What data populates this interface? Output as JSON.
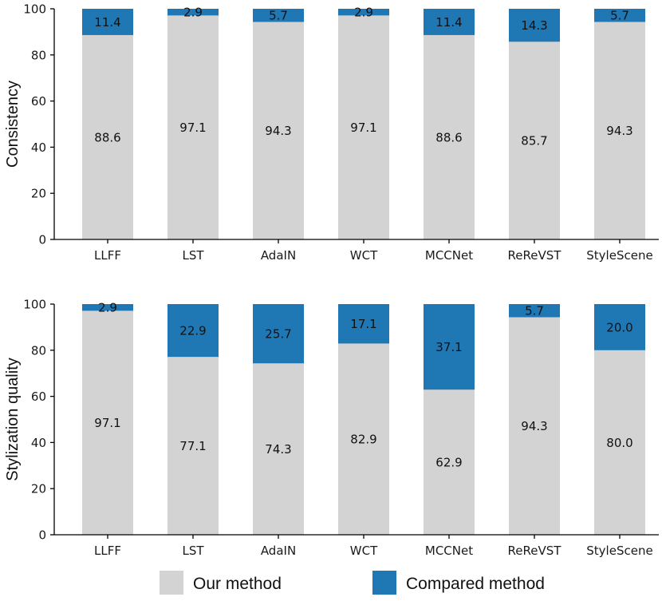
{
  "colors": {
    "ours": "#d3d3d3",
    "compared": "#1f77b4"
  },
  "legend": {
    "ours_label": "Our method",
    "compared_label": "Compared method"
  },
  "chart_data": [
    {
      "type": "bar",
      "stacked": true,
      "title": "",
      "xlabel": "",
      "ylabel": "Consistency",
      "ylim": [
        0,
        100
      ],
      "yticks": [
        "0",
        "20",
        "40",
        "60",
        "80",
        "100"
      ],
      "categories": [
        "LLFF",
        "LST",
        "AdaIN",
        "WCT",
        "MCCNet",
        "ReReVST",
        "StyleScene"
      ],
      "series": [
        {
          "name": "Our method",
          "values": [
            88.6,
            97.1,
            94.3,
            97.1,
            88.6,
            85.7,
            94.3
          ],
          "labels": [
            "88.6",
            "97.1",
            "94.3",
            "97.1",
            "88.6",
            "85.7",
            "94.3"
          ]
        },
        {
          "name": "Compared method",
          "values": [
            11.4,
            2.9,
            5.7,
            2.9,
            11.4,
            14.3,
            5.7
          ],
          "labels": [
            "11.4",
            "2.9",
            "5.7",
            "2.9",
            "11.4",
            "14.3",
            "5.7"
          ]
        }
      ]
    },
    {
      "type": "bar",
      "stacked": true,
      "title": "",
      "xlabel": "",
      "ylabel": "Stylization quality",
      "ylim": [
        0,
        100
      ],
      "yticks": [
        "0",
        "20",
        "40",
        "60",
        "80",
        "100"
      ],
      "categories": [
        "LLFF",
        "LST",
        "AdaIN",
        "WCT",
        "MCCNet",
        "ReReVST",
        "StyleScene"
      ],
      "series": [
        {
          "name": "Our method",
          "values": [
            97.1,
            77.1,
            74.3,
            82.9,
            62.9,
            94.3,
            80.0
          ],
          "labels": [
            "97.1",
            "77.1",
            "74.3",
            "82.9",
            "62.9",
            "94.3",
            "80.0"
          ]
        },
        {
          "name": "Compared method",
          "values": [
            2.9,
            22.9,
            25.7,
            17.1,
            37.1,
            5.7,
            20.0
          ],
          "labels": [
            "2.9",
            "22.9",
            "25.7",
            "17.1",
            "37.1",
            "5.7",
            "20.0"
          ]
        }
      ]
    }
  ]
}
